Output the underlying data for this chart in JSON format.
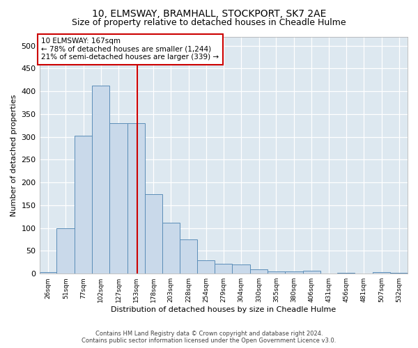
{
  "title": "10, ELMSWAY, BRAMHALL, STOCKPORT, SK7 2AE",
  "subtitle": "Size of property relative to detached houses in Cheadle Hulme",
  "xlabel": "Distribution of detached houses by size in Cheadle Hulme",
  "ylabel": "Number of detached properties",
  "footer_line1": "Contains HM Land Registry data © Crown copyright and database right 2024.",
  "footer_line2": "Contains public sector information licensed under the Open Government Licence v3.0.",
  "annotation_line1": "10 ELMSWAY: 167sqm",
  "annotation_line2": "← 78% of detached houses are smaller (1,244)",
  "annotation_line3": "21% of semi-detached houses are larger (339) →",
  "bar_color": "#c9d9ea",
  "bar_edge_color": "#5b8db8",
  "vline_color": "#cc0000",
  "vline_x": 167,
  "categories": [
    "26sqm",
    "51sqm",
    "77sqm",
    "102sqm",
    "127sqm",
    "153sqm",
    "178sqm",
    "203sqm",
    "228sqm",
    "254sqm",
    "279sqm",
    "304sqm",
    "330sqm",
    "355sqm",
    "380sqm",
    "406sqm",
    "431sqm",
    "456sqm",
    "481sqm",
    "507sqm",
    "532sqm"
  ],
  "bin_edges": [
    26,
    51,
    77,
    102,
    127,
    153,
    178,
    203,
    228,
    254,
    279,
    304,
    330,
    355,
    380,
    406,
    431,
    456,
    481,
    507,
    532,
    557
  ],
  "values": [
    4,
    100,
    302,
    412,
    330,
    330,
    175,
    112,
    75,
    30,
    22,
    20,
    10,
    5,
    5,
    6,
    1,
    2,
    1,
    4,
    2
  ],
  "ylim": [
    0,
    520
  ],
  "yticks": [
    0,
    50,
    100,
    150,
    200,
    250,
    300,
    350,
    400,
    450,
    500
  ],
  "fig_bg_color": "#ffffff",
  "plot_bg_color": "#dde8f0",
  "title_fontsize": 10,
  "subtitle_fontsize": 9,
  "annotation_fontsize": 7.5,
  "footer_fontsize": 6,
  "ylabel_fontsize": 8,
  "xlabel_fontsize": 8
}
